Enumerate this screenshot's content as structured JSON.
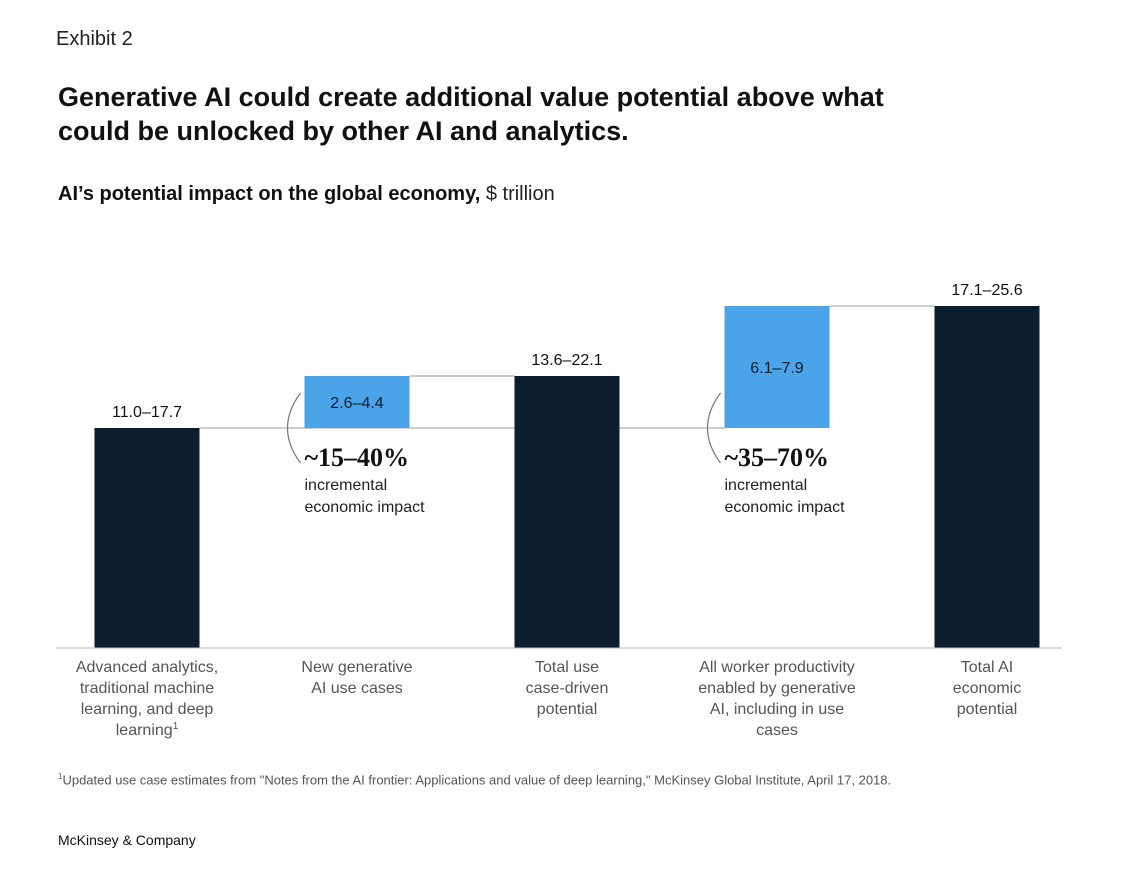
{
  "header": {
    "exhibit": "Exhibit 2",
    "title": "Generative AI could create additional value potential above what could be unlocked by other AI and analytics.",
    "subtitle_bold": "AI’s potential impact on the global economy,",
    "subtitle_unit": "$ trillion"
  },
  "chart_data": {
    "type": "waterfall",
    "title": "AI’s potential impact on the global economy, $ trillion",
    "categories": [
      "Advanced analytics, traditional machine learning, and deep learning",
      "New generative AI use cases",
      "Total use case-driven potential",
      "All worker productivity enabled by generative AI, including in use cases",
      "Total AI economic potential"
    ],
    "category_lines": [
      [
        "Advanced analytics,",
        "traditional machine",
        "learning, and deep",
        "learning"
      ],
      [
        "New generative",
        "AI use cases"
      ],
      [
        "Total use",
        "case-driven",
        "potential"
      ],
      [
        "All worker productivity",
        "enabled by generative",
        "AI, including in use",
        "cases"
      ],
      [
        "Total AI",
        "economic",
        "potential"
      ]
    ],
    "category_footnote_marks": [
      "1",
      "",
      "",
      "",
      ""
    ],
    "bars": [
      {
        "label": "11.0–17.7",
        "low": 11.0,
        "high": 17.7,
        "kind": "total",
        "start": 0,
        "end": 11.0
      },
      {
        "label": "2.6–4.4",
        "low": 2.6,
        "high": 4.4,
        "kind": "increment",
        "start": 11.0,
        "end": 13.6
      },
      {
        "label": "13.6–22.1",
        "low": 13.6,
        "high": 22.1,
        "kind": "total",
        "start": 0,
        "end": 13.6
      },
      {
        "label": "6.1–7.9",
        "low": 6.1,
        "high": 7.9,
        "kind": "increment",
        "start": 11.0,
        "end": 17.1
      },
      {
        "label": "17.1–25.6",
        "low": 17.1,
        "high": 25.6,
        "kind": "total",
        "start": 0,
        "end": 17.1
      }
    ],
    "annotations": [
      {
        "after_bar": 1,
        "value": "~15–40%",
        "text_lines": [
          "incremental",
          "economic impact"
        ]
      },
      {
        "after_bar": 3,
        "value": "~35–70%",
        "text_lines": [
          "incremental",
          "economic impact"
        ]
      }
    ],
    "ylim": [
      0,
      17.1
    ],
    "colors": {
      "total": "#0b1d2e",
      "increment": "#4ba3e8",
      "axis": "#bdbdbd",
      "connector": "#9e9e9e"
    }
  },
  "footnote": {
    "mark": "1",
    "text": "Updated use case estimates from \"Notes from the AI frontier: Applications and value of deep learning,\" McKinsey Global Institute, April 17, 2018."
  },
  "brand": "McKinsey & Company"
}
